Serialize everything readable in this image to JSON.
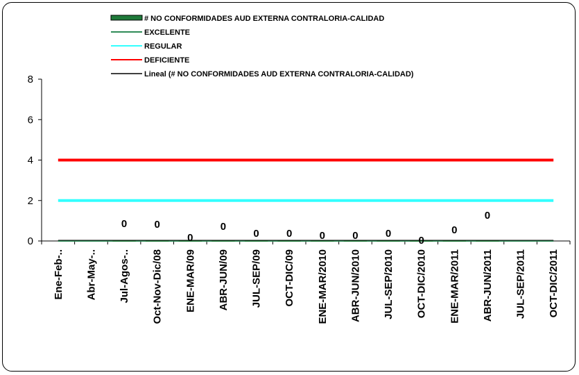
{
  "chart_data": {
    "type": "line",
    "categories": [
      "Ene-Feb-..",
      "Abr-May-..",
      "Jul-Agos-..",
      "Oct-Nov-Dic/08",
      "ENE-MAR/09",
      "ABR-JUN/09",
      "JUL-SEP/09",
      "OCT-DIC/09",
      "ENE-MAR/2010",
      "ABR-JUN/2010",
      "JUL-SEP/2010",
      "OCT-DIC/2010",
      "ENE-MAR/2011",
      "ABR-JUN/2011",
      "JUL-SEP/2011",
      "OCT-DIC/2011"
    ],
    "ylim": [
      0,
      8
    ],
    "yticks": [
      0,
      2,
      4,
      6,
      8
    ],
    "series": [
      {
        "name": "# NO CONFORMIDADES AUD EXTERNA CONTRALORIA-CALIDAD",
        "kind": "bar",
        "color": "#1f7a3a",
        "values": [
          null,
          null,
          0,
          0,
          0,
          0,
          0,
          0,
          0,
          0,
          0,
          0,
          0,
          0,
          null,
          null
        ],
        "labels": [
          "",
          "",
          "0",
          "0",
          "0",
          "0",
          "0",
          "0",
          "0",
          "0",
          "0",
          "0",
          "0",
          "0",
          "",
          ""
        ]
      },
      {
        "name": "EXCELENTE",
        "kind": "line",
        "color": "#2e8b57",
        "values": [
          0,
          0,
          0,
          0,
          0,
          0,
          0,
          0,
          0,
          0,
          0,
          0,
          0,
          0,
          0,
          0
        ]
      },
      {
        "name": "REGULAR",
        "kind": "line",
        "color": "#33ffff",
        "values": [
          2,
          2,
          2,
          2,
          2,
          2,
          2,
          2,
          2,
          2,
          2,
          2,
          2,
          2,
          2,
          2
        ]
      },
      {
        "name": "DEFICIENTE",
        "kind": "line",
        "color": "#ff0000",
        "values": [
          4,
          4,
          4,
          4,
          4,
          4,
          4,
          4,
          4,
          4,
          4,
          4,
          4,
          4,
          4,
          4
        ]
      },
      {
        "name": "Lineal (# NO CONFORMIDADES AUD EXTERNA CONTRALORIA-CALIDAD)",
        "kind": "trend",
        "color": "#000000"
      }
    ],
    "legend_position": "top-center",
    "grid": false
  }
}
